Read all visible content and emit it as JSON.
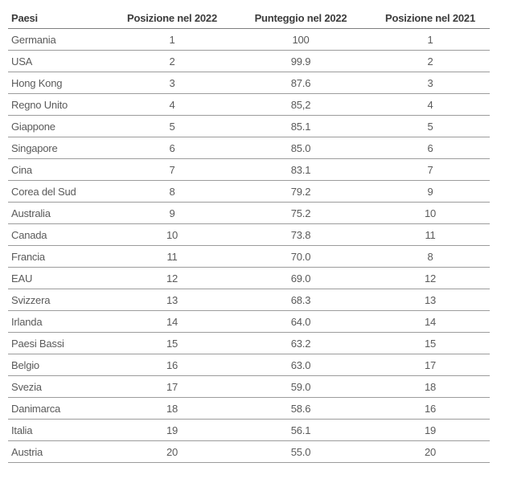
{
  "table": {
    "columns": [
      {
        "key": "paese",
        "label": "Paesi",
        "align": "left"
      },
      {
        "key": "posizione-2022",
        "label": "Posizione nel 2022",
        "align": "center"
      },
      {
        "key": "punteggio-2022",
        "label": "Punteggio nel 2022",
        "align": "center"
      },
      {
        "key": "posizione-2021",
        "label": "Posizione nel 2021",
        "align": "center"
      }
    ],
    "rows": [
      [
        "Germania",
        "1",
        "100",
        "1"
      ],
      [
        "USA",
        "2",
        "99.9",
        "2"
      ],
      [
        "Hong Kong",
        "3",
        "87.6",
        "3"
      ],
      [
        "Regno Unito",
        "4",
        "85,2",
        "4"
      ],
      [
        "Giappone",
        "5",
        "85.1",
        "5"
      ],
      [
        "Singapore",
        "6",
        "85.0",
        "6"
      ],
      [
        "Cina",
        "7",
        "83.1",
        "7"
      ],
      [
        "Corea del Sud",
        "8",
        "79.2",
        "9"
      ],
      [
        "Australia",
        "9",
        "75.2",
        "10"
      ],
      [
        "Canada",
        "10",
        "73.8",
        "11"
      ],
      [
        "Francia",
        "11",
        "70.0",
        "8"
      ],
      [
        "EAU",
        "12",
        "69.0",
        "12"
      ],
      [
        "Svizzera",
        "13",
        "68.3",
        "13"
      ],
      [
        "Irlanda",
        "14",
        "64.0",
        "14"
      ],
      [
        "Paesi Bassi",
        "15",
        "63.2",
        "15"
      ],
      [
        "Belgio",
        "16",
        "63.0",
        "17"
      ],
      [
        "Svezia",
        "17",
        "59.0",
        "18"
      ],
      [
        "Danimarca",
        "18",
        "58.6",
        "16"
      ],
      [
        "Italia",
        "19",
        "56.1",
        "19"
      ],
      [
        "Austria",
        "20",
        "55.0",
        "20"
      ]
    ]
  },
  "chart_data": {
    "type": "table",
    "title": "",
    "columns": [
      "Paesi",
      "Posizione nel 2022",
      "Punteggio nel 2022",
      "Posizione nel 2021"
    ],
    "rows": [
      [
        "Germania",
        1,
        100,
        1
      ],
      [
        "USA",
        2,
        99.9,
        2
      ],
      [
        "Hong Kong",
        3,
        87.6,
        3
      ],
      [
        "Regno Unito",
        4,
        85.2,
        4
      ],
      [
        "Giappone",
        5,
        85.1,
        5
      ],
      [
        "Singapore",
        6,
        85.0,
        6
      ],
      [
        "Cina",
        7,
        83.1,
        7
      ],
      [
        "Corea del Sud",
        8,
        79.2,
        9
      ],
      [
        "Australia",
        9,
        75.2,
        10
      ],
      [
        "Canada",
        10,
        73.8,
        11
      ],
      [
        "Francia",
        11,
        70.0,
        8
      ],
      [
        "EAU",
        12,
        69.0,
        12
      ],
      [
        "Svizzera",
        13,
        68.3,
        13
      ],
      [
        "Irlanda",
        14,
        64.0,
        14
      ],
      [
        "Paesi Bassi",
        15,
        63.2,
        15
      ],
      [
        "Belgio",
        16,
        63.0,
        17
      ],
      [
        "Svezia",
        17,
        59.0,
        18
      ],
      [
        "Danimarca",
        18,
        58.6,
        16
      ],
      [
        "Italia",
        19,
        56.1,
        19
      ],
      [
        "Austria",
        20,
        55.0,
        20
      ]
    ]
  },
  "colors": {
    "background": "#ffffff",
    "header_text": "#3c3c3c",
    "body_text": "#5a5a5a",
    "header_border": "#7f7f7f",
    "row_border": "#9c9c9c"
  }
}
